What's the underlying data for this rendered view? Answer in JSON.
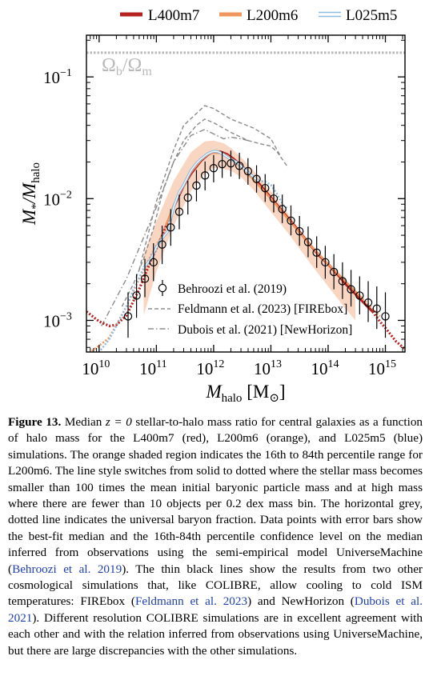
{
  "chart_data": {
    "type": "line",
    "xlabel_main": "M",
    "xlabel_sub": "halo",
    "xlabel_unit_open": " [M",
    "xlabel_unit_sub": "⊙",
    "xlabel_unit_close": "]",
    "ylabel_main": "M",
    "ylabel_sub1": "*",
    "ylabel_mid": "/M",
    "ylabel_sub2": "halo",
    "x_scale": "log",
    "y_scale": "log",
    "xlim": [
      6000000000.0,
      2200000000000000.0
    ],
    "ylim": [
      0.00055,
      0.22
    ],
    "x_ticks": [
      {
        "base": "10",
        "exp": "10",
        "value": 10000000000.0
      },
      {
        "base": "10",
        "exp": "11",
        "value": 100000000000.0
      },
      {
        "base": "10",
        "exp": "12",
        "value": 1000000000000.0
      },
      {
        "base": "10",
        "exp": "13",
        "value": 10000000000000.0
      },
      {
        "base": "10",
        "exp": "14",
        "value": 100000000000000.0
      },
      {
        "base": "10",
        "exp": "15",
        "value": 1000000000000000.0
      }
    ],
    "y_ticks": [
      {
        "base": "10",
        "exp": "−3",
        "value": 0.001
      },
      {
        "base": "10",
        "exp": "−2",
        "value": 0.01
      },
      {
        "base": "10",
        "exp": "−1",
        "value": 0.1
      }
    ],
    "baryon_fraction": {
      "value": 0.158,
      "label_main": "Ω",
      "label_sub1": "b",
      "label_mid": "/Ω",
      "label_sub2": "m",
      "color": "#b9b9b9"
    },
    "legend_top": [
      {
        "label": "L400m7",
        "color": "#b5211f"
      },
      {
        "label": "L200m6",
        "color": "#f0955e"
      },
      {
        "label": "L025m5",
        "color": "#8fbbe0"
      }
    ],
    "legend_bottom": [
      {
        "label": "Behroozi et al. (2019)",
        "style": "errorbar"
      },
      {
        "label": "Feldmann et al. (2023) [FIREbox]",
        "style": "dashed"
      },
      {
        "label": "Dubois et al. (2021) [NewHorizon]",
        "style": "dashdot"
      }
    ],
    "shaded_band": {
      "color": "#f7c8ad",
      "lower": [
        [
          60000000000.0,
          0.0011
        ],
        [
          100000000000.0,
          0.0025
        ],
        [
          200000000000.0,
          0.006
        ],
        [
          400000000000.0,
          0.0115
        ],
        [
          700000000000.0,
          0.016
        ],
        [
          1000000000000.0,
          0.018
        ],
        [
          1500000000000.0,
          0.0175
        ],
        [
          2000000000000.0,
          0.017
        ],
        [
          3000000000000.0,
          0.015
        ],
        [
          5000000000000.0,
          0.0118
        ],
        [
          10000000000000.0,
          0.0078
        ],
        [
          20000000000000.0,
          0.0052
        ],
        [
          50000000000000.0,
          0.0029
        ],
        [
          100000000000000.0,
          0.0019
        ],
        [
          200000000000000.0,
          0.00125
        ],
        [
          300000000000000.0,
          0.001
        ]
      ],
      "upper": [
        [
          60000000000.0,
          0.0035
        ],
        [
          100000000000.0,
          0.0065
        ],
        [
          200000000000.0,
          0.014
        ],
        [
          400000000000.0,
          0.024
        ],
        [
          700000000000.0,
          0.0295
        ],
        [
          1000000000000.0,
          0.03
        ],
        [
          1500000000000.0,
          0.0285
        ],
        [
          2000000000000.0,
          0.026
        ],
        [
          3000000000000.0,
          0.022
        ],
        [
          5000000000000.0,
          0.017
        ],
        [
          10000000000000.0,
          0.0115
        ],
        [
          20000000000000.0,
          0.0075
        ],
        [
          50000000000000.0,
          0.0042
        ],
        [
          100000000000000.0,
          0.0029
        ],
        [
          200000000000000.0,
          0.00195
        ],
        [
          300000000000000.0,
          0.0016
        ]
      ]
    },
    "series": [
      {
        "name": "L400m7",
        "color": "#b5211f",
        "width": 3.2,
        "solid": [
          [
            200000000000.0,
            0.0085
          ],
          [
            300000000000.0,
            0.0128
          ],
          [
            400000000000.0,
            0.016
          ],
          [
            600000000000.0,
            0.0205
          ],
          [
            800000000000.0,
            0.023
          ],
          [
            1000000000000.0,
            0.0242
          ],
          [
            1300000000000.0,
            0.0243
          ],
          [
            1700000000000.0,
            0.0232
          ],
          [
            2200000000000.0,
            0.0213
          ],
          [
            3000000000000.0,
            0.0188
          ],
          [
            4000000000000.0,
            0.0165
          ],
          [
            6000000000000.0,
            0.0135
          ],
          [
            10000000000000.0,
            0.0102
          ],
          [
            15000000000000.0,
            0.0081
          ],
          [
            20000000000000.0,
            0.0069
          ],
          [
            30000000000000.0,
            0.0055
          ],
          [
            50000000000000.0,
            0.0041
          ],
          [
            70000000000000.0,
            0.0034
          ],
          [
            100000000000000.0,
            0.0029
          ],
          [
            150000000000000.0,
            0.00235
          ],
          [
            200000000000000.0,
            0.002
          ],
          [
            300000000000000.0,
            0.00165
          ],
          [
            450000000000000.0,
            0.00135
          ],
          [
            600000000000000.0,
            0.00118
          ]
        ],
        "dotted": [
          [
            6000000000.0,
            0.00118
          ],
          [
            10000000000.0,
            0.00098
          ],
          [
            15000000000.0,
            0.0009
          ],
          [
            20000000000.0,
            0.00092
          ],
          [
            30000000000.0,
            0.0011
          ],
          [
            50000000000.0,
            0.0018
          ],
          [
            80000000000.0,
            0.0031
          ],
          [
            120000000000.0,
            0.0047
          ],
          [
            200000000000.0,
            0.0085
          ],
          [
            600000000000000.0,
            0.00118
          ],
          [
            800000000000000.0,
            0.00098
          ],
          [
            1100000000000000.0,
            0.00082
          ],
          [
            1500000000000000.0,
            0.00068
          ],
          [
            2200000000000000.0,
            0.00058
          ]
        ]
      },
      {
        "name": "L200m6",
        "color": "#f0955e",
        "width": 2.6,
        "solid": [
          [
            150000000000.0,
            0.0062
          ],
          [
            200000000000.0,
            0.0088
          ],
          [
            300000000000.0,
            0.013
          ],
          [
            400000000000.0,
            0.0165
          ],
          [
            600000000000.0,
            0.0208
          ],
          [
            800000000000.0,
            0.0232
          ],
          [
            1000000000000.0,
            0.0238
          ],
          [
            1300000000000.0,
            0.0236
          ],
          [
            1700000000000.0,
            0.0226
          ],
          [
            2200000000000.0,
            0.0207
          ],
          [
            3000000000000.0,
            0.0182
          ],
          [
            5000000000000.0,
            0.0143
          ],
          [
            10000000000000.0,
            0.01
          ],
          [
            20000000000000.0,
            0.0068
          ],
          [
            50000000000000.0,
            0.0041
          ],
          [
            100000000000000.0,
            0.0029
          ],
          [
            200000000000000.0,
            0.0021
          ],
          [
            400000000000000.0,
            0.0015
          ]
        ],
        "dotted": [
          [
            6000000000.0,
            0.00052
          ],
          [
            10000000000.0,
            0.00062
          ],
          [
            15000000000.0,
            0.00072
          ],
          [
            20000000000.0,
            0.00092
          ],
          [
            30000000000.0,
            0.0013
          ],
          [
            50000000000.0,
            0.0022
          ],
          [
            80000000000.0,
            0.0034
          ],
          [
            120000000000.0,
            0.0048
          ],
          [
            150000000000.0,
            0.0062
          ],
          [
            400000000000000.0,
            0.0015
          ],
          [
            600000000000000.0,
            0.00125
          ],
          [
            800000000000000.0,
            0.00108
          ]
        ]
      },
      {
        "name": "L025m5",
        "color": "#8fbbe0",
        "width": 2.4,
        "solid": [
          [
            60000000000.0,
            0.0027
          ],
          [
            80000000000.0,
            0.0032
          ],
          [
            100000000000.0,
            0.004
          ],
          [
            130000000000.0,
            0.0048
          ],
          [
            160000000000.0,
            0.0054
          ],
          [
            200000000000.0,
            0.0085
          ],
          [
            250000000000.0,
            0.0113
          ],
          [
            300000000000.0,
            0.013
          ],
          [
            400000000000.0,
            0.017
          ],
          [
            500000000000.0,
            0.0195
          ],
          [
            600000000000.0,
            0.0212
          ],
          [
            800000000000.0,
            0.0235
          ],
          [
            1000000000000.0,
            0.0245
          ],
          [
            1200000000000.0,
            0.0243
          ],
          [
            1500000000000.0,
            0.023
          ],
          [
            2000000000000.0,
            0.021
          ],
          [
            2500000000000.0,
            0.02
          ],
          [
            3000000000000.0,
            0.0185
          ],
          [
            4000000000000.0,
            0.0165
          ],
          [
            5000000000000.0,
            0.015
          ],
          [
            6000000000000.0,
            0.014
          ]
        ],
        "dotted": [
          [
            8000000000.0,
            0.0005
          ],
          [
            10000000000.0,
            0.00055
          ],
          [
            15000000000.0,
            0.0007
          ],
          [
            20000000000.0,
            0.0009
          ],
          [
            30000000000.0,
            0.0013
          ],
          [
            40000000000.0,
            0.0018
          ],
          [
            60000000000.0,
            0.0027
          ],
          [
            6000000000000.0,
            0.014
          ],
          [
            8000000000000.0,
            0.0138
          ],
          [
            10000000000000.0,
            0.013
          ],
          [
            13000000000000.0,
            0.0108
          ],
          [
            16000000000000.0,
            0.009
          ],
          [
            20000000000000.0,
            0.0082
          ]
        ]
      }
    ],
    "feldmann": [
      [
        [
          50000000000.0,
          0.0026
        ],
        [
          100000000000.0,
          0.0095
        ],
        [
          200000000000.0,
          0.025
        ],
        [
          300000000000.0,
          0.04
        ],
        [
          500000000000.0,
          0.05
        ],
        [
          700000000000.0,
          0.058
        ],
        [
          1000000000000.0,
          0.055
        ],
        [
          2000000000000.0,
          0.045
        ],
        [
          5000000000000.0,
          0.038
        ],
        [
          10000000000000.0,
          0.031
        ],
        [
          15000000000000.0,
          0.022
        ]
      ],
      [
        [
          25000000000.0,
          0.0013
        ],
        [
          40000000000.0,
          0.002
        ],
        [
          60000000000.0,
          0.0032
        ],
        [
          90000000000.0,
          0.0058
        ],
        [
          130000000000.0,
          0.0115
        ],
        [
          200000000000.0,
          0.02
        ],
        [
          300000000000.0,
          0.03
        ],
        [
          500000000000.0,
          0.04
        ],
        [
          700000000000.0,
          0.045
        ],
        [
          1000000000000.0,
          0.042
        ],
        [
          2000000000000.0,
          0.035
        ],
        [
          4000000000000.0,
          0.03
        ],
        [
          7000000000000.0,
          0.028
        ],
        [
          10000000000000.0,
          0.027
        ],
        [
          13000000000000.0,
          0.024
        ],
        [
          20000000000000.0,
          0.018
        ]
      ]
    ],
    "dubois": [
      [
        11000000000.0,
        0.0009
      ],
      [
        30000000000.0,
        0.0022
      ],
      [
        60000000000.0,
        0.0048
      ],
      [
        100000000000.0,
        0.0085
      ],
      [
        200000000000.0,
        0.02
      ],
      [
        400000000000.0,
        0.033
      ],
      [
        700000000000.0,
        0.037
      ],
      [
        1000000000000.0,
        0.034
      ],
      [
        1500000000000.0,
        0.031
      ],
      [
        2000000000000.0,
        0.032
      ],
      [
        3000000000000.0,
        0.031
      ],
      [
        4000000000000.0,
        0.03
      ]
    ],
    "behroozi": [
      {
        "x": 32000000000.0,
        "y": 0.00108,
        "lo": 0.00072,
        "hi": 0.0017
      },
      {
        "x": 45000000000.0,
        "y": 0.0016,
        "lo": 0.00105,
        "hi": 0.0024
      },
      {
        "x": 63000000000.0,
        "y": 0.0022,
        "lo": 0.00155,
        "hi": 0.0032
      },
      {
        "x": 89000000000.0,
        "y": 0.003,
        "lo": 0.0021,
        "hi": 0.0043
      },
      {
        "x": 126000000000.0,
        "y": 0.0042,
        "lo": 0.0029,
        "hi": 0.006
      },
      {
        "x": 178000000000.0,
        "y": 0.0058,
        "lo": 0.0041,
        "hi": 0.0082
      },
      {
        "x": 251000000000.0,
        "y": 0.0078,
        "lo": 0.0056,
        "hi": 0.0108
      },
      {
        "x": 355000000000.0,
        "y": 0.0102,
        "lo": 0.0074,
        "hi": 0.014
      },
      {
        "x": 501000000000.0,
        "y": 0.0128,
        "lo": 0.0095,
        "hi": 0.0172
      },
      {
        "x": 708000000000.0,
        "y": 0.0155,
        "lo": 0.0117,
        "hi": 0.0202
      },
      {
        "x": 1000000000000.0,
        "y": 0.0178,
        "lo": 0.0136,
        "hi": 0.0228
      },
      {
        "x": 1410000000000.0,
        "y": 0.0192,
        "lo": 0.0148,
        "hi": 0.0245
      },
      {
        "x": 2000000000000.0,
        "y": 0.0195,
        "lo": 0.0152,
        "hi": 0.0248
      },
      {
        "x": 2820000000000.0,
        "y": 0.0186,
        "lo": 0.0145,
        "hi": 0.0238
      },
      {
        "x": 3980000000000.0,
        "y": 0.0168,
        "lo": 0.013,
        "hi": 0.0215
      },
      {
        "x": 5620000000000.0,
        "y": 0.0145,
        "lo": 0.0112,
        "hi": 0.0188
      },
      {
        "x": 7940000000000.0,
        "y": 0.0122,
        "lo": 0.0094,
        "hi": 0.0159
      },
      {
        "x": 11200000000000.0,
        "y": 0.01,
        "lo": 0.0077,
        "hi": 0.0131
      },
      {
        "x": 15800000000000.0,
        "y": 0.0082,
        "lo": 0.0063,
        "hi": 0.0108
      },
      {
        "x": 22400000000000.0,
        "y": 0.0066,
        "lo": 0.005,
        "hi": 0.0088
      },
      {
        "x": 31600000000000.0,
        "y": 0.0054,
        "lo": 0.0041,
        "hi": 0.0072
      },
      {
        "x": 44700000000000.0,
        "y": 0.0044,
        "lo": 0.0033,
        "hi": 0.0059
      },
      {
        "x": 63100000000000.0,
        "y": 0.0036,
        "lo": 0.0027,
        "hi": 0.0049
      },
      {
        "x": 89100000000000.0,
        "y": 0.003,
        "lo": 0.0022,
        "hi": 0.0041
      },
      {
        "x": 126000000000000.0,
        "y": 0.0025,
        "lo": 0.0018,
        "hi": 0.0035
      },
      {
        "x": 178000000000000.0,
        "y": 0.0021,
        "lo": 0.0015,
        "hi": 0.003
      },
      {
        "x": 251000000000000.0,
        "y": 0.0018,
        "lo": 0.0013,
        "hi": 0.0026
      },
      {
        "x": 355000000000000.0,
        "y": 0.0016,
        "lo": 0.00112,
        "hi": 0.0023
      },
      {
        "x": 501000000000000.0,
        "y": 0.0014,
        "lo": 0.00097,
        "hi": 0.0021
      },
      {
        "x": 708000000000000.0,
        "y": 0.00125,
        "lo": 0.00085,
        "hi": 0.0019
      },
      {
        "x": 1000000000000000.0,
        "y": 0.00108,
        "lo": 0.00072,
        "hi": 0.0017
      }
    ]
  },
  "caption": {
    "lead": "Figure 13.",
    "p1": " Median ",
    "z_eq": "z = 0",
    "p2": " stellar-to-halo mass ratio for central galaxies as a function of halo mass for the L400m7 (red), L200m6 (orange), and L025m5 (blue) simulations. The orange shaded region indicates the 16th to 84th percentile range for L200m6. The line style switches from solid to dotted where the stellar mass becomes smaller than 100 times the mean initial baryonic particle mass and at high mass where there are fewer than 10 objects per 0.2 dex mass bin. The horizontal grey, dotted line indicates the universal baryon fraction. Data points with error bars show the best-fit median and the 16th-84th percentile confidence level on the median inferred from observations using the semi-empirical model UniverseMachine (",
    "cite1": "Behroozi et al. 2019",
    "p3": "). The thin black lines show the results from two other cosmological simulations that, like COLIBRE, allow cooling to cold ISM temperatures: FIREbox (",
    "cite2": "Feldmann et al. 2023",
    "p4": ") and NewHorizon (",
    "cite3": "Dubois et al. 2021",
    "p5": "). Different resolution COLIBRE simulations are in excellent agreement with each other and with the relation inferred from observations using UniverseMachine, but there are large discrepancies with the other simulations."
  }
}
